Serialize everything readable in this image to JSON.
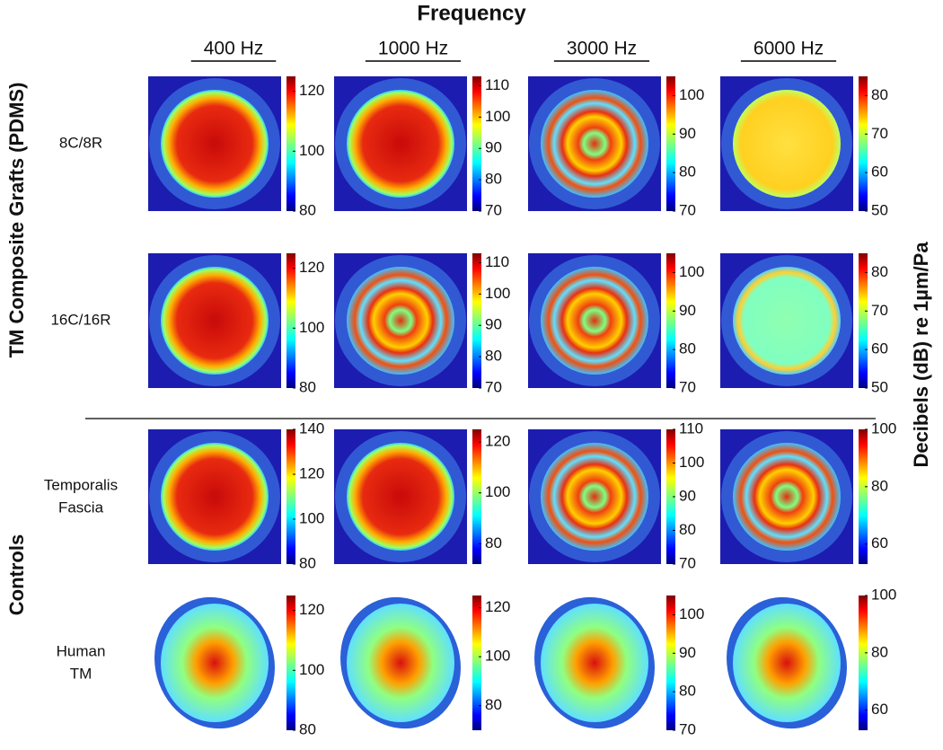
{
  "title": "Frequency",
  "columns": [
    "400 Hz",
    "1000 Hz",
    "3000 Hz",
    "6000 Hz"
  ],
  "groups": [
    "TM Composite Grafts (PDMS)",
    "Controls"
  ],
  "colorbar_label": "Decibels (dB)  re 1µm/Pa",
  "rows": [
    {
      "label": [
        "8C/8R"
      ],
      "panels": [
        {
          "lim": [
            80,
            125
          ],
          "ticks": [
            80,
            100,
            120
          ]
        },
        {
          "lim": [
            70,
            113
          ],
          "ticks": [
            70,
            80,
            90,
            100,
            110
          ]
        },
        {
          "lim": [
            70,
            105
          ],
          "ticks": [
            70,
            80,
            90,
            100
          ]
        },
        {
          "lim": [
            50,
            85
          ],
          "ticks": [
            50,
            60,
            70,
            80
          ]
        }
      ]
    },
    {
      "label": [
        "16C/16R"
      ],
      "panels": [
        {
          "lim": [
            80,
            125
          ],
          "ticks": [
            80,
            100,
            120
          ]
        },
        {
          "lim": [
            70,
            113
          ],
          "ticks": [
            70,
            80,
            90,
            100,
            110
          ]
        },
        {
          "lim": [
            70,
            105
          ],
          "ticks": [
            70,
            80,
            90,
            100
          ]
        },
        {
          "lim": [
            50,
            85
          ],
          "ticks": [
            50,
            60,
            70,
            80
          ]
        }
      ]
    },
    {
      "label": [
        "Temporalis",
        "Fascia"
      ],
      "panels": [
        {
          "lim": [
            80,
            140
          ],
          "ticks": [
            80,
            100,
            120,
            140
          ]
        },
        {
          "lim": [
            72,
            125
          ],
          "ticks": [
            80,
            100,
            120
          ]
        },
        {
          "lim": [
            70,
            110
          ],
          "ticks": [
            70,
            80,
            90,
            100,
            110
          ]
        },
        {
          "lim": [
            53,
            100
          ],
          "ticks": [
            60,
            80,
            100
          ]
        }
      ]
    },
    {
      "label": [
        "Human",
        "TM"
      ],
      "panels": [
        {
          "lim": [
            80,
            125
          ],
          "ticks": [
            80,
            100,
            120
          ]
        },
        {
          "lim": [
            70,
            125
          ],
          "ticks": [
            80,
            100,
            120
          ]
        },
        {
          "lim": [
            70,
            105
          ],
          "ticks": [
            70,
            80,
            90,
            100
          ]
        },
        {
          "lim": [
            53,
            100
          ],
          "ticks": [
            60,
            80,
            100
          ]
        }
      ]
    }
  ]
}
